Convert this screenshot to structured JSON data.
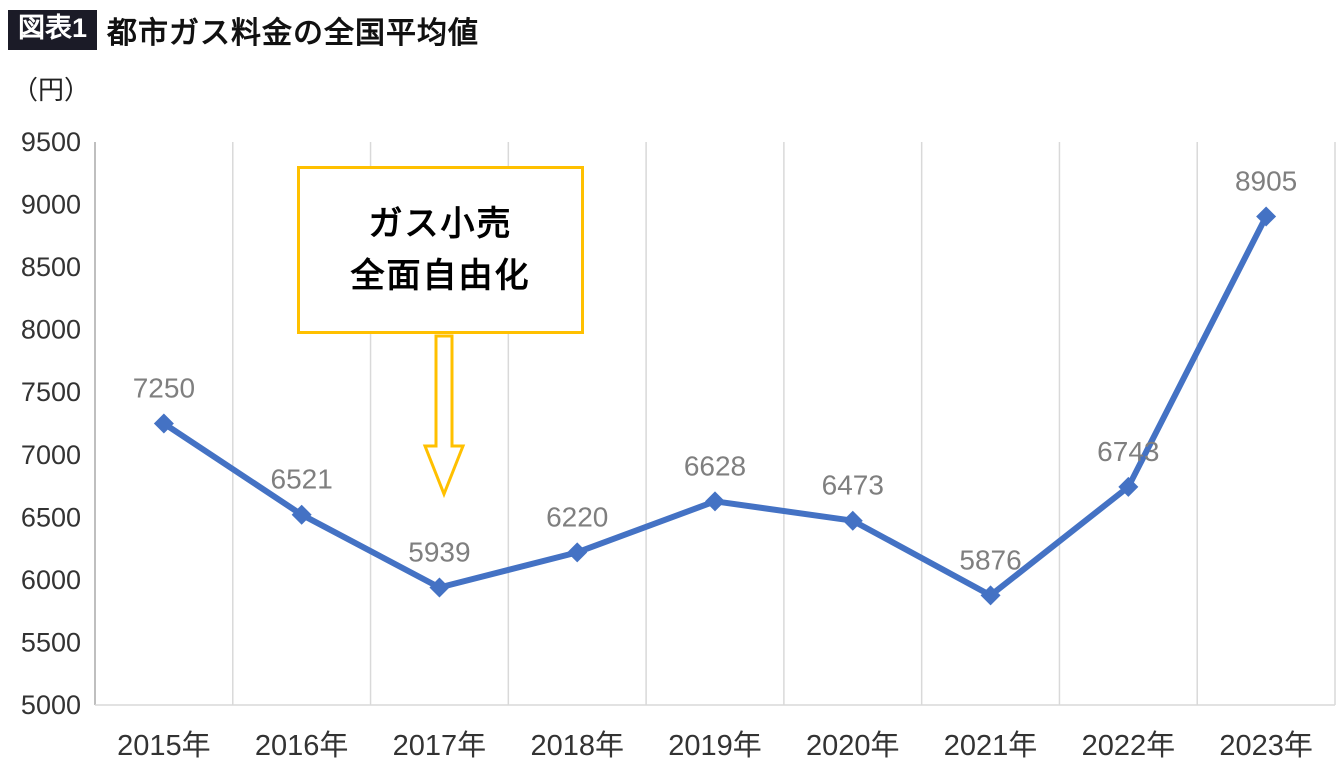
{
  "header": {
    "badge": "図表1",
    "title": "都市ガス料金の全国平均値",
    "unit_label": "（円）"
  },
  "chart_data": {
    "type": "line",
    "title": "都市ガス料金の全国平均値",
    "categories": [
      "2015年",
      "2016年",
      "2017年",
      "2018年",
      "2019年",
      "2020年",
      "2021年",
      "2022年",
      "2023年"
    ],
    "values": [
      7250,
      6521,
      5939,
      6220,
      6628,
      6473,
      5876,
      6743,
      8905
    ],
    "ylabel": "（円）",
    "ylim": [
      5000,
      9500
    ],
    "ytick_step": 500,
    "grid": "vertical-only",
    "line_color": "#4472C4",
    "marker": "diamond",
    "data_label_color": "#7f7f7f",
    "axis_label_color": "#333333",
    "gridline_color": "#d9d9d9",
    "axis_line_color": "#bfbfbf",
    "annotation": {
      "lines": [
        "ガス小売",
        "全面自由化"
      ],
      "border_color": "#FFC000",
      "points_to_category": "2017年"
    }
  }
}
